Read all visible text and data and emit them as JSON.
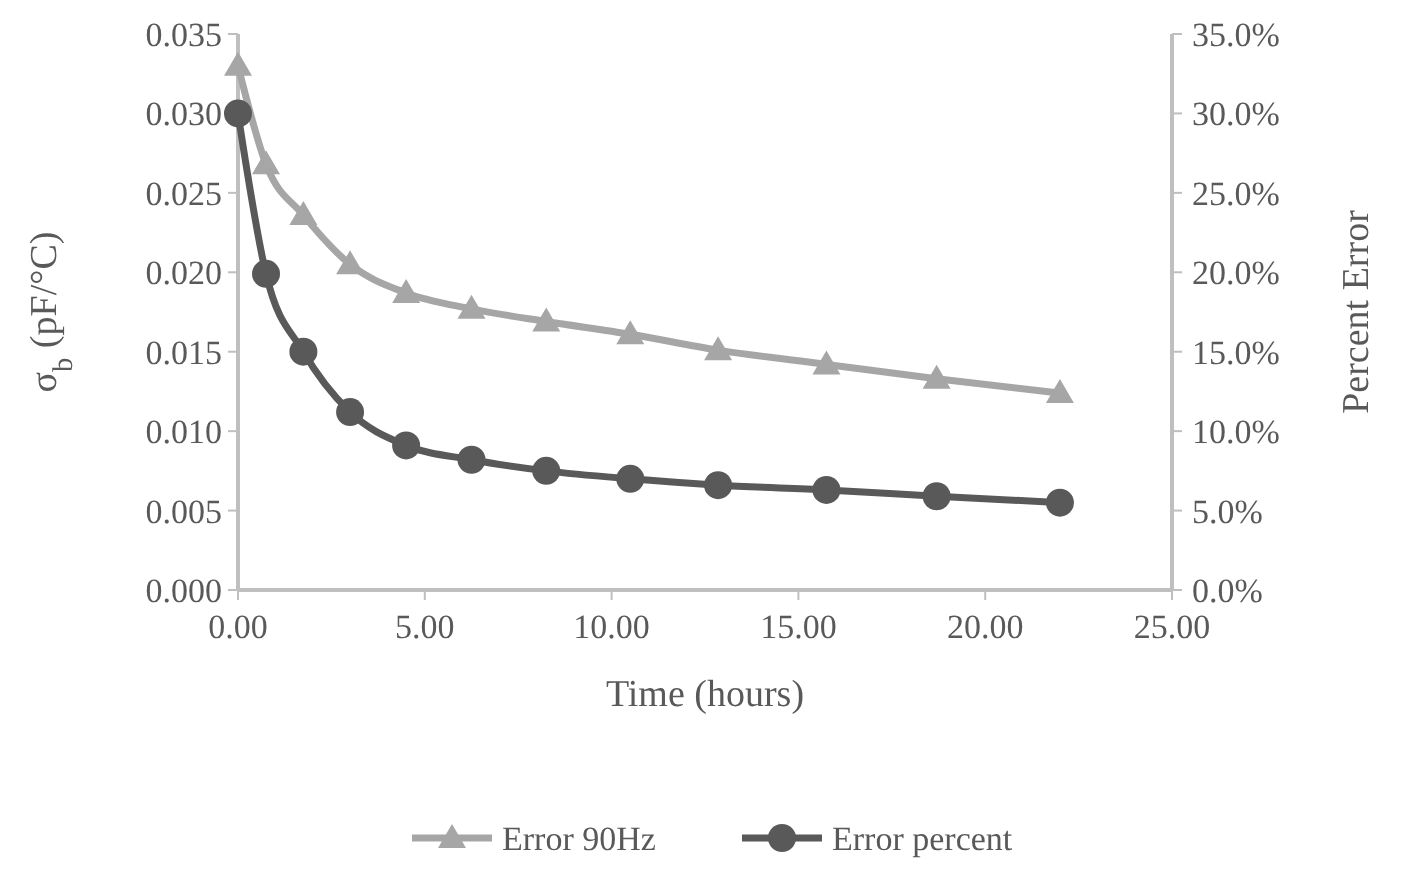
{
  "chart_data": {
    "type": "line",
    "xlabel": "Time (hours)",
    "ylabel": "σ$_{b}$ (pF/°C)",
    "y2label": "Percent Error",
    "x": [
      0,
      0.75,
      1.75,
      3,
      4.5,
      6.25,
      8.25,
      10.5,
      12.85,
      15.75,
      18.7,
      22
    ],
    "xlim": [
      0,
      25
    ],
    "xticks": [
      {
        "value": 0,
        "label": "0.00"
      },
      {
        "value": 5,
        "label": "5.00"
      },
      {
        "value": 10,
        "label": "10.00"
      },
      {
        "value": 15,
        "label": "15.00"
      },
      {
        "value": 20,
        "label": "20.00"
      },
      {
        "value": 25,
        "label": "25.00"
      }
    ],
    "ylim": [
      0,
      0.035
    ],
    "yticks": [
      {
        "value": 0,
        "label": "0.000"
      },
      {
        "value": 0.005,
        "label": "0.005"
      },
      {
        "value": 0.01,
        "label": "0.010"
      },
      {
        "value": 0.015,
        "label": "0.015"
      },
      {
        "value": 0.02,
        "label": "0.020"
      },
      {
        "value": 0.025,
        "label": "0.025"
      },
      {
        "value": 0.03,
        "label": "0.030"
      },
      {
        "value": 0.035,
        "label": "0.035"
      }
    ],
    "y2lim": [
      0,
      35
    ],
    "y2ticks": [
      {
        "value": 0,
        "label": "0.0%"
      },
      {
        "value": 5,
        "label": "5.0%"
      },
      {
        "value": 10,
        "label": "10.0%"
      },
      {
        "value": 15,
        "label": "15.0%"
      },
      {
        "value": 20,
        "label": "20.0%"
      },
      {
        "value": 25,
        "label": "25.0%"
      },
      {
        "value": 30,
        "label": "30.0%"
      },
      {
        "value": 35,
        "label": "35.0%"
      }
    ],
    "series": [
      {
        "name": "Error 90Hz",
        "color": "#a6a6a6",
        "marker": "triangle",
        "values": [
          0.033,
          0.0268,
          0.0236,
          0.0205,
          0.0187,
          0.0177,
          0.0169,
          0.0161,
          0.0151,
          0.0142,
          0.0133,
          0.0124
        ]
      },
      {
        "name": "Error percent",
        "color": "#595959",
        "marker": "circle",
        "axis": "y2",
        "values": [
          30.0,
          19.9,
          15.0,
          11.2,
          9.1,
          8.2,
          7.5,
          7.0,
          6.6,
          6.3,
          5.9,
          5.5
        ]
      }
    ],
    "grid": false,
    "legend": "bottom"
  }
}
